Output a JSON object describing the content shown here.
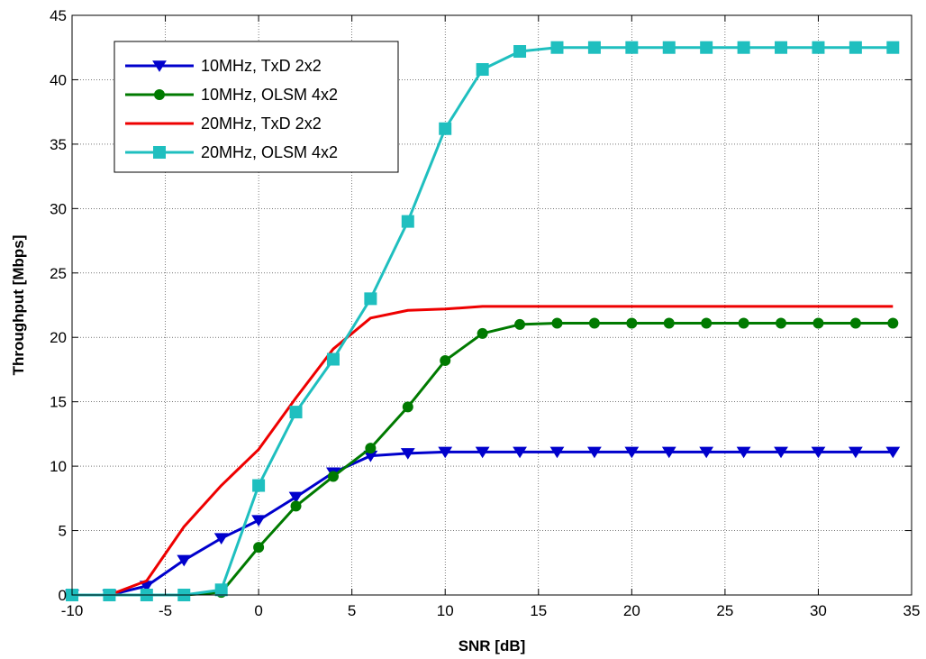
{
  "chart_data": {
    "type": "line",
    "title": "",
    "xlabel": "SNR [dB]",
    "ylabel": "Throughput [Mbps]",
    "xlim": [
      -10,
      35
    ],
    "ylim": [
      0,
      45
    ],
    "xticks": [
      -10,
      -5,
      0,
      5,
      10,
      15,
      20,
      25,
      30,
      35
    ],
    "yticks": [
      0,
      5,
      10,
      15,
      20,
      25,
      30,
      35,
      40,
      45
    ],
    "grid": true,
    "legend_position": "top-left",
    "x": [
      -10,
      -8,
      -6,
      -4,
      -2,
      0,
      2,
      4,
      6,
      8,
      10,
      12,
      14,
      16,
      18,
      20,
      22,
      24,
      26,
      28,
      30,
      32,
      34
    ],
    "series": [
      {
        "name": "10MHz, TxD 2x2",
        "color": "#0000cc",
        "marker": "triangle-down",
        "values": [
          0,
          0,
          0.7,
          2.7,
          4.4,
          5.8,
          7.6,
          9.5,
          10.8,
          11.0,
          11.1,
          11.1,
          11.1,
          11.1,
          11.1,
          11.1,
          11.1,
          11.1,
          11.1,
          11.1,
          11.1,
          11.1,
          11.1
        ]
      },
      {
        "name": "10MHz, OLSM 4x2",
        "color": "#007a00",
        "marker": "circle",
        "values": [
          0,
          0,
          0,
          0,
          0.2,
          3.7,
          6.9,
          9.2,
          11.4,
          14.6,
          18.2,
          20.3,
          21.0,
          21.1,
          21.1,
          21.1,
          21.1,
          21.1,
          21.1,
          21.1,
          21.1,
          21.1,
          21.1
        ]
      },
      {
        "name": "20MHz, TxD 2x2",
        "color": "#ee0000",
        "marker": "none",
        "values": [
          0,
          0,
          1.1,
          5.3,
          8.5,
          11.3,
          15.3,
          19.1,
          21.5,
          22.1,
          22.2,
          22.4,
          22.4,
          22.4,
          22.4,
          22.4,
          22.4,
          22.4,
          22.4,
          22.4,
          22.4,
          22.4,
          22.4
        ]
      },
      {
        "name": "20MHz, OLSM 4x2",
        "color": "#1fbfbf",
        "marker": "square",
        "values": [
          0,
          0,
          0,
          0,
          0.4,
          8.5,
          14.2,
          18.3,
          23.0,
          29.0,
          36.2,
          40.8,
          42.2,
          42.5,
          42.5,
          42.5,
          42.5,
          42.5,
          42.5,
          42.5,
          42.5,
          42.5,
          42.5
        ]
      }
    ]
  }
}
